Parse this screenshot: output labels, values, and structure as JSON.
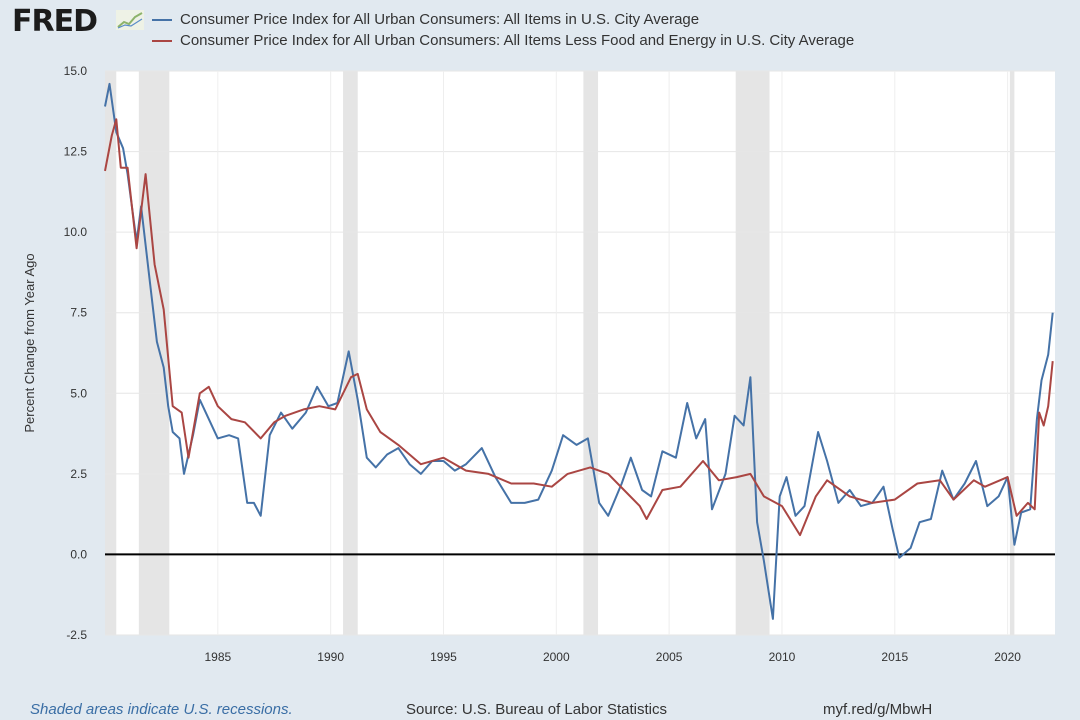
{
  "logo": "FRED",
  "footer": {
    "note": "Shaded areas indicate U.S. recessions.",
    "source": "Source: U.S. Bureau of Labor Statistics",
    "link": "myf.red/g/MbwH"
  },
  "chart_data": {
    "type": "line",
    "ylabel": "Percent Change from Year Ago",
    "xlim": [
      1980.0,
      2022.1
    ],
    "ylim": [
      -2.5,
      15.0
    ],
    "yticks": [
      -2.5,
      0.0,
      2.5,
      5.0,
      7.5,
      10.0,
      12.5,
      15.0
    ],
    "ytick_labels": [
      "-2.5",
      "0.0",
      "2.5",
      "5.0",
      "7.5",
      "10.0",
      "12.5",
      "15.0"
    ],
    "xticks": [
      1985,
      1990,
      1995,
      2000,
      2005,
      2010,
      2015,
      2020
    ],
    "xtick_labels": [
      "1985",
      "1990",
      "1995",
      "2000",
      "2005",
      "2010",
      "2015",
      "2020"
    ],
    "grid": true,
    "legend": "top",
    "recessions": [
      [
        1980.0,
        1980.5
      ],
      [
        1981.5,
        1982.85
      ],
      [
        1990.55,
        1991.2
      ],
      [
        2001.2,
        2001.85
      ],
      [
        2007.95,
        2009.45
      ],
      [
        2020.1,
        2020.3
      ]
    ],
    "series": [
      {
        "name": "Consumer Price Index for All Urban Consumers: All Items in U.S. City Average",
        "color": "#4572a7",
        "x": [
          1980.0,
          1980.2,
          1980.5,
          1980.8,
          1981.0,
          1981.4,
          1981.6,
          1981.8,
          1982.0,
          1982.3,
          1982.6,
          1982.8,
          1983.0,
          1983.3,
          1983.5,
          1983.9,
          1984.2,
          1984.6,
          1985.0,
          1985.5,
          1985.9,
          1986.3,
          1986.6,
          1986.9,
          1987.3,
          1987.8,
          1988.3,
          1988.9,
          1989.4,
          1989.9,
          1990.3,
          1990.8,
          1991.2,
          1991.6,
          1992.0,
          1992.5,
          1993.0,
          1993.5,
          1994.0,
          1994.5,
          1995.0,
          1995.5,
          1996.0,
          1996.7,
          1997.3,
          1998.0,
          1998.6,
          1999.2,
          1999.8,
          2000.3,
          2000.9,
          2001.4,
          2001.9,
          2002.3,
          2002.9,
          2003.3,
          2003.8,
          2004.2,
          2004.7,
          2005.3,
          2005.8,
          2006.2,
          2006.6,
          2006.9,
          2007.5,
          2007.9,
          2008.3,
          2008.6,
          2008.9,
          2009.2,
          2009.6,
          2009.9,
          2010.2,
          2010.6,
          2011.0,
          2011.6,
          2012.0,
          2012.5,
          2013.0,
          2013.5,
          2014.0,
          2014.5,
          2014.9,
          2015.2,
          2015.7,
          2016.1,
          2016.6,
          2017.1,
          2017.6,
          2018.1,
          2018.6,
          2019.1,
          2019.6,
          2020.0,
          2020.3,
          2020.6,
          2021.0,
          2021.3,
          2021.5,
          2021.8,
          2022.0
        ],
        "values": [
          13.9,
          14.6,
          13.1,
          12.6,
          11.8,
          9.7,
          10.8,
          9.6,
          8.4,
          6.6,
          5.8,
          4.6,
          3.8,
          3.6,
          2.5,
          3.7,
          4.8,
          4.2,
          3.6,
          3.7,
          3.6,
          1.6,
          1.6,
          1.2,
          3.7,
          4.4,
          3.9,
          4.4,
          5.2,
          4.6,
          4.7,
          6.3,
          4.8,
          3.0,
          2.7,
          3.1,
          3.3,
          2.8,
          2.5,
          2.9,
          2.9,
          2.6,
          2.8,
          3.3,
          2.4,
          1.6,
          1.6,
          1.7,
          2.6,
          3.7,
          3.4,
          3.6,
          1.6,
          1.2,
          2.2,
          3.0,
          2.0,
          1.8,
          3.2,
          3.0,
          4.7,
          3.6,
          4.2,
          1.4,
          2.5,
          4.3,
          4.0,
          5.5,
          1.0,
          -0.2,
          -2.0,
          1.8,
          2.4,
          1.2,
          1.5,
          3.8,
          2.9,
          1.6,
          2.0,
          1.5,
          1.6,
          2.1,
          0.8,
          -0.1,
          0.2,
          1.0,
          1.1,
          2.6,
          1.7,
          2.2,
          2.9,
          1.5,
          1.8,
          2.4,
          0.3,
          1.3,
          1.4,
          4.2,
          5.4,
          6.2,
          7.5
        ]
      },
      {
        "name": "Consumer Price Index for All Urban Consumers: All Items Less Food and Energy in U.S. City Average",
        "color": "#aa4643",
        "x": [
          1980.0,
          1980.3,
          1980.5,
          1980.7,
          1981.0,
          1981.4,
          1981.8,
          1982.2,
          1982.6,
          1983.0,
          1983.4,
          1983.7,
          1984.2,
          1984.6,
          1985.0,
          1985.6,
          1986.2,
          1986.9,
          1987.5,
          1988.0,
          1988.8,
          1989.5,
          1990.2,
          1990.9,
          1991.2,
          1991.6,
          1992.2,
          1993.0,
          1994.0,
          1995.0,
          1996.0,
          1997.0,
          1998.0,
          1999.0,
          1999.8,
          2000.5,
          2001.5,
          2002.3,
          2003.0,
          2003.7,
          2004.0,
          2004.7,
          2005.5,
          2006.5,
          2007.2,
          2008.0,
          2008.6,
          2009.2,
          2010.0,
          2010.8,
          2011.5,
          2012.0,
          2013.0,
          2014.0,
          2015.0,
          2016.0,
          2017.0,
          2017.6,
          2018.5,
          2019.0,
          2020.0,
          2020.4,
          2020.9,
          2021.2,
          2021.4,
          2021.6,
          2021.8,
          2022.0
        ],
        "values": [
          11.9,
          13.0,
          13.5,
          12.0,
          12.0,
          9.5,
          11.8,
          9.0,
          7.6,
          4.6,
          4.4,
          3.0,
          5.0,
          5.2,
          4.6,
          4.2,
          4.1,
          3.6,
          4.1,
          4.3,
          4.5,
          4.6,
          4.5,
          5.5,
          5.6,
          4.5,
          3.8,
          3.4,
          2.8,
          3.0,
          2.6,
          2.5,
          2.2,
          2.2,
          2.1,
          2.5,
          2.7,
          2.5,
          2.0,
          1.5,
          1.1,
          2.0,
          2.1,
          2.9,
          2.3,
          2.4,
          2.5,
          1.8,
          1.5,
          0.6,
          1.8,
          2.3,
          1.8,
          1.6,
          1.7,
          2.2,
          2.3,
          1.7,
          2.3,
          2.1,
          2.4,
          1.2,
          1.6,
          1.4,
          4.4,
          4.0,
          4.6,
          6.0
        ]
      }
    ]
  }
}
